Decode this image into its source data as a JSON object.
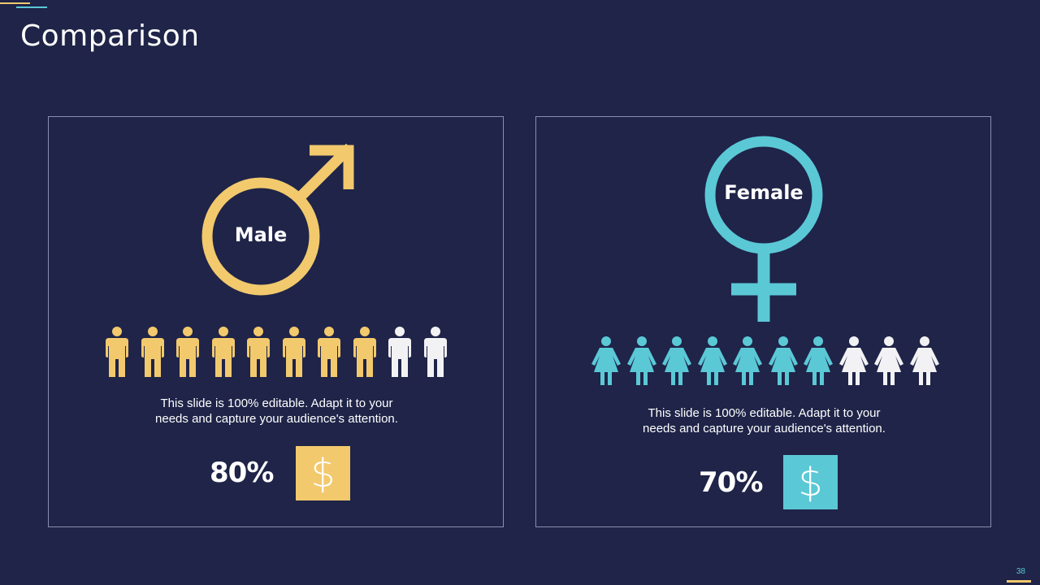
{
  "slide": {
    "title": "Comparison",
    "page_number": "38"
  },
  "colors": {
    "background": "#1f2448",
    "male_accent": "#f2c96d",
    "female_accent": "#5bc8d6",
    "inactive": "#f2f2f4"
  },
  "male": {
    "label": "Male",
    "icon": "male-symbol-icon",
    "people_total": 10,
    "people_filled": 8,
    "description_line1": "This slide is 100% editable. Adapt it to your",
    "description_line2": "needs and capture your audience's attention.",
    "percentage": "80%",
    "dollar_icon": "dollar-icon",
    "dollar_glyph": "$"
  },
  "female": {
    "label": "Female",
    "icon": "female-symbol-icon",
    "people_total": 10,
    "people_filled": 7,
    "description_line1": "This slide is 100% editable. Adapt it to your",
    "description_line2": "needs and capture your audience's attention.",
    "percentage": "70%",
    "dollar_icon": "dollar-icon",
    "dollar_glyph": "$"
  }
}
